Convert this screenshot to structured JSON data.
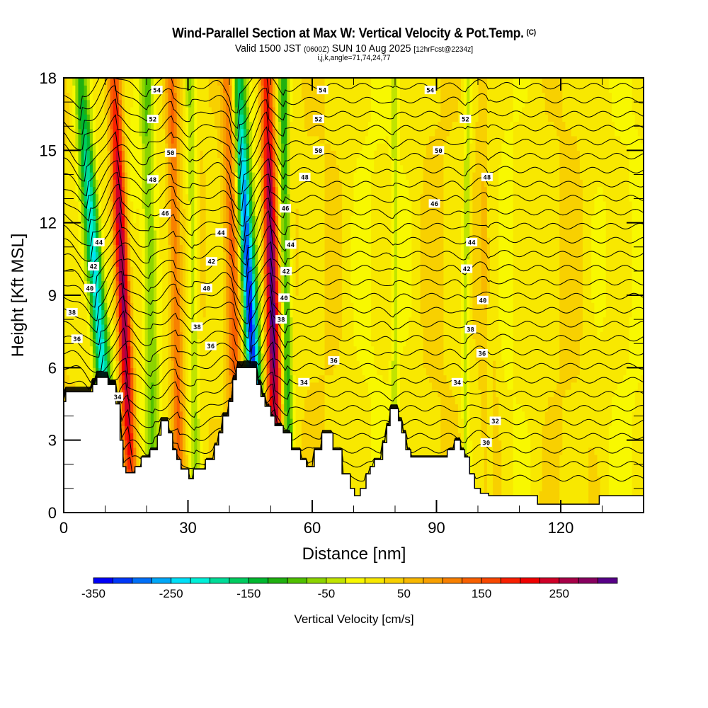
{
  "header": {
    "title": "Wind-Parallel Section at Max W: Vertical Velocity & Pot.Temp.",
    "copyright": "(C)",
    "valid_prefix": "Valid 1500 JST",
    "valid_utc": "(0600Z)",
    "valid_date": "SUN 10 Aug 2025",
    "forecast": "[12hrFcst@2234z]",
    "indices": "i,j,k,angle=71,74,24,77"
  },
  "chart_data": {
    "type": "heatmap",
    "title": "Wind-Parallel Section at Max W: Vertical Velocity & Pot.Temp.",
    "xlabel": "Distance [nm]",
    "ylabel": "Height [Kft MSL]",
    "xlim": [
      0,
      140
    ],
    "ylim": [
      0,
      18
    ],
    "x_ticks": [
      0,
      30,
      60,
      90,
      120
    ],
    "x_tick_labels": [
      "0",
      "30",
      "60",
      "90",
      "120"
    ],
    "x_minor_step": 10,
    "y_ticks": [
      0,
      3,
      6,
      9,
      12,
      15,
      18
    ],
    "y_tick_labels": [
      "0",
      "3",
      "6",
      "9",
      "12",
      "15",
      "18"
    ],
    "y_minor_step": 1,
    "colorbar": {
      "title": "Vertical Velocity [cm/s]",
      "min": -350,
      "max": 325,
      "step": 25,
      "tick_values": [
        -350,
        -250,
        -150,
        -50,
        50,
        150,
        250
      ],
      "tick_labels": [
        "-350",
        "-250",
        "-150",
        "-50",
        "50",
        "150",
        "250"
      ],
      "colors": [
        "#0000f8",
        "#0038f8",
        "#0070f8",
        "#00a8f8",
        "#00e0f8",
        "#00f0d8",
        "#00dc98",
        "#00cc60",
        "#00b830",
        "#20b010",
        "#50c000",
        "#8cd400",
        "#c0e400",
        "#f8f800",
        "#f8e800",
        "#f8d000",
        "#f8b800",
        "#f8a000",
        "#f88000",
        "#f86000",
        "#f84800",
        "#f82000",
        "#f00000",
        "#d00028",
        "#a80048",
        "#880060",
        "#580088"
      ]
    },
    "vertical_velocity_features": [
      {
        "name": "plume-1-up",
        "base_x_nm": 16.5,
        "top_x_nm": 12.2,
        "w_cm_s": 300,
        "half_width_nm": 1.6
      },
      {
        "name": "plume-1-down",
        "base_x_nm": 12.0,
        "top_x_nm": 4.0,
        "w_cm_s": -260,
        "half_width_nm": 1.8
      },
      {
        "name": "plume-2-up",
        "base_x_nm": 28.0,
        "top_x_nm": 26.0,
        "w_cm_s": 120,
        "half_width_nm": 1.4
      },
      {
        "name": "plume-2-down",
        "base_x_nm": 22.0,
        "top_x_nm": 20.0,
        "w_cm_s": -90,
        "half_width_nm": 1.6
      },
      {
        "name": "plume-3-up",
        "base_x_nm": 42.0,
        "top_x_nm": 40.0,
        "w_cm_s": 140,
        "half_width_nm": 2.0
      },
      {
        "name": "plume-3-down",
        "base_x_nm": 32.0,
        "top_x_nm": 30.5,
        "w_cm_s": -80,
        "half_width_nm": 1.3
      },
      {
        "name": "plume-4-up",
        "base_x_nm": 51.5,
        "top_x_nm": 49.0,
        "w_cm_s": 330,
        "half_width_nm": 1.6
      },
      {
        "name": "plume-4-down",
        "base_x_nm": 47.5,
        "top_x_nm": 42.0,
        "w_cm_s": -340,
        "half_width_nm": 1.7
      },
      {
        "name": "plume-5-down",
        "base_x_nm": 54.5,
        "top_x_nm": 53.0,
        "w_cm_s": -140,
        "half_width_nm": 1.2
      },
      {
        "name": "plume-6-down",
        "base_x_nm": 80.0,
        "top_x_nm": 80.0,
        "w_cm_s": -50,
        "half_width_nm": 0.8
      },
      {
        "name": "plume-7-down",
        "base_x_nm": 97.0,
        "top_x_nm": 97.5,
        "w_cm_s": -60,
        "half_width_nm": 0.9
      },
      {
        "name": "plume-8-down",
        "base_x_nm": 103.0,
        "top_x_nm": 103.0,
        "w_cm_s": -40,
        "half_width_nm": 0.7
      },
      {
        "name": "weak-up-bands",
        "base_x_nm": 103.0,
        "top_x_nm": 102.0,
        "w_cm_s": 50,
        "half_width_nm": 2.5
      }
    ],
    "terrain_kft": [
      [
        0,
        4.6
      ],
      [
        0.5,
        5.0
      ],
      [
        7,
        5.3
      ],
      [
        8,
        5.6
      ],
      [
        10.7,
        5.3
      ],
      [
        12.6,
        4.5
      ],
      [
        13.6,
        3.0
      ],
      [
        14.3,
        1.9
      ],
      [
        15,
        1.65
      ],
      [
        17.2,
        1.9
      ],
      [
        18.7,
        2.3
      ],
      [
        20.8,
        2.6
      ],
      [
        22.6,
        3.2
      ],
      [
        23.5,
        3.8
      ],
      [
        25.3,
        3.3
      ],
      [
        26.3,
        2.6
      ],
      [
        27.3,
        2.2
      ],
      [
        28.3,
        1.8
      ],
      [
        30.2,
        1.4
      ],
      [
        31.3,
        1.8
      ],
      [
        34.2,
        2.2
      ],
      [
        36.4,
        2.8
      ],
      [
        37.4,
        3.3
      ],
      [
        38.4,
        4.0
      ],
      [
        39.8,
        4.6
      ],
      [
        40.8,
        5.5
      ],
      [
        41.7,
        6.0
      ],
      [
        46.6,
        5.3
      ],
      [
        47.6,
        4.8
      ],
      [
        48.6,
        4.4
      ],
      [
        50.0,
        4.0
      ],
      [
        51.0,
        3.6
      ],
      [
        53.0,
        3.3
      ],
      [
        55.0,
        2.6
      ],
      [
        57.2,
        2.2
      ],
      [
        58.6,
        1.9
      ],
      [
        60.5,
        2.6
      ],
      [
        62.3,
        3.3
      ],
      [
        65.0,
        2.6
      ],
      [
        67.2,
        1.6
      ],
      [
        69.2,
        1.0
      ],
      [
        70.2,
        0.7
      ],
      [
        71.6,
        1.0
      ],
      [
        73.0,
        1.6
      ],
      [
        74.0,
        1.9
      ],
      [
        75.0,
        2.2
      ],
      [
        77.0,
        2.9
      ],
      [
        78.0,
        3.6
      ],
      [
        78.8,
        4.3
      ],
      [
        80.8,
        3.8
      ],
      [
        81.6,
        3.3
      ],
      [
        82.6,
        2.6
      ],
      [
        83.8,
        2.3
      ],
      [
        92.6,
        2.6
      ],
      [
        94.3,
        3.0
      ],
      [
        95.8,
        2.6
      ],
      [
        96.8,
        2.3
      ],
      [
        98.0,
        1.6
      ],
      [
        99.2,
        1.0
      ],
      [
        100.6,
        0.8
      ],
      [
        102.6,
        0.7
      ],
      [
        114.4,
        0.35
      ],
      [
        129.3,
        0.7
      ],
      [
        140,
        0.7
      ]
    ],
    "contours": {
      "variable": "Potential Temperature",
      "min": 28,
      "max": 56,
      "step": 1,
      "labels": [
        {
          "value": "54",
          "x_nm": 22.5,
          "y_kft": 17.5
        },
        {
          "value": "54",
          "x_nm": 62.5,
          "y_kft": 17.5
        },
        {
          "value": "54",
          "x_nm": 88.5,
          "y_kft": 17.5
        },
        {
          "value": "52",
          "x_nm": 21.5,
          "y_kft": 16.3
        },
        {
          "value": "52",
          "x_nm": 61.5,
          "y_kft": 16.3
        },
        {
          "value": "52",
          "x_nm": 97.0,
          "y_kft": 16.3
        },
        {
          "value": "50",
          "x_nm": 25.8,
          "y_kft": 14.9
        },
        {
          "value": "50",
          "x_nm": 61.5,
          "y_kft": 15.0
        },
        {
          "value": "50",
          "x_nm": 90.5,
          "y_kft": 15.0
        },
        {
          "value": "48",
          "x_nm": 21.5,
          "y_kft": 13.8
        },
        {
          "value": "48",
          "x_nm": 58.2,
          "y_kft": 13.9
        },
        {
          "value": "48",
          "x_nm": 102.2,
          "y_kft": 13.9
        },
        {
          "value": "46",
          "x_nm": 24.5,
          "y_kft": 12.4
        },
        {
          "value": "46",
          "x_nm": 53.5,
          "y_kft": 12.6
        },
        {
          "value": "46",
          "x_nm": 89.5,
          "y_kft": 12.8
        },
        {
          "value": "44",
          "x_nm": 38.0,
          "y_kft": 11.6
        },
        {
          "value": "44",
          "x_nm": 8.5,
          "y_kft": 11.2
        },
        {
          "value": "44",
          "x_nm": 54.8,
          "y_kft": 11.1
        },
        {
          "value": "44",
          "x_nm": 98.5,
          "y_kft": 11.2
        },
        {
          "value": "42",
          "x_nm": 7.2,
          "y_kft": 10.2
        },
        {
          "value": "42",
          "x_nm": 35.7,
          "y_kft": 10.4
        },
        {
          "value": "42",
          "x_nm": 53.7,
          "y_kft": 10.0
        },
        {
          "value": "42",
          "x_nm": 97.3,
          "y_kft": 10.1
        },
        {
          "value": "40",
          "x_nm": 6.3,
          "y_kft": 9.3
        },
        {
          "value": "40",
          "x_nm": 34.5,
          "y_kft": 9.3
        },
        {
          "value": "40",
          "x_nm": 53.2,
          "y_kft": 8.9
        },
        {
          "value": "40",
          "x_nm": 101.2,
          "y_kft": 8.8
        },
        {
          "value": "38",
          "x_nm": 2.0,
          "y_kft": 8.3
        },
        {
          "value": "38",
          "x_nm": 32.2,
          "y_kft": 7.7
        },
        {
          "value": "38",
          "x_nm": 98.2,
          "y_kft": 7.6
        },
        {
          "value": "38",
          "x_nm": 52.5,
          "y_kft": 8.0
        },
        {
          "value": "36",
          "x_nm": 3.2,
          "y_kft": 7.2
        },
        {
          "value": "36",
          "x_nm": 35.5,
          "y_kft": 6.9
        },
        {
          "value": "36",
          "x_nm": 65.2,
          "y_kft": 6.3
        },
        {
          "value": "36",
          "x_nm": 101.0,
          "y_kft": 6.6
        },
        {
          "value": "34",
          "x_nm": 13.0,
          "y_kft": 4.8
        },
        {
          "value": "34",
          "x_nm": 58.0,
          "y_kft": 5.4
        },
        {
          "value": "34",
          "x_nm": 95.0,
          "y_kft": 5.4
        },
        {
          "value": "32",
          "x_nm": 104.2,
          "y_kft": 3.8
        },
        {
          "value": "30",
          "x_nm": 102.0,
          "y_kft": 2.9
        }
      ]
    }
  }
}
